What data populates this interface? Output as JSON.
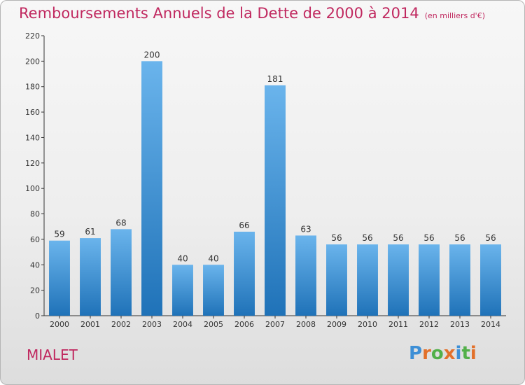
{
  "title": "Remboursements Annuels de la Dette de 2000 à 2014",
  "unit": "(en milliers d'€)",
  "town": "MIALET",
  "logo": {
    "text": "Proxiti",
    "colors": [
      "#3d8fd6",
      "#e2702a",
      "#53b04a",
      "#e2702a",
      "#3d8fd6",
      "#53b04a",
      "#e2702a"
    ]
  },
  "colors": {
    "bar_top": "#6ab4ec",
    "bar_bottom": "#1f72b8",
    "title": "#c0285f",
    "axis": "#333333"
  },
  "chart_data": {
    "type": "bar",
    "categories": [
      "2000",
      "2001",
      "2002",
      "2003",
      "2004",
      "2005",
      "2006",
      "2007",
      "2008",
      "2009",
      "2010",
      "2011",
      "2012",
      "2013",
      "2014"
    ],
    "values": [
      59,
      61,
      68,
      200,
      40,
      40,
      66,
      181,
      63,
      56,
      56,
      56,
      56,
      56,
      56
    ],
    "data_labels": [
      "59",
      "61",
      "68",
      "200",
      "40",
      "40",
      "66",
      "181",
      "63",
      "56",
      "56",
      "56",
      "56",
      "56",
      "56"
    ],
    "title": "Remboursements Annuels de la Dette de 2000 à 2014",
    "xlabel": "",
    "ylabel": "",
    "ylim": [
      0,
      220
    ],
    "yticks": [
      0,
      20,
      40,
      60,
      80,
      100,
      120,
      140,
      160,
      180,
      200,
      220
    ],
    "ytick_labels": [
      "0",
      "20",
      "40",
      "60",
      "80",
      "100",
      "120",
      "140",
      "160",
      "180",
      "200",
      "220"
    ],
    "grid": false,
    "legend": "none"
  }
}
